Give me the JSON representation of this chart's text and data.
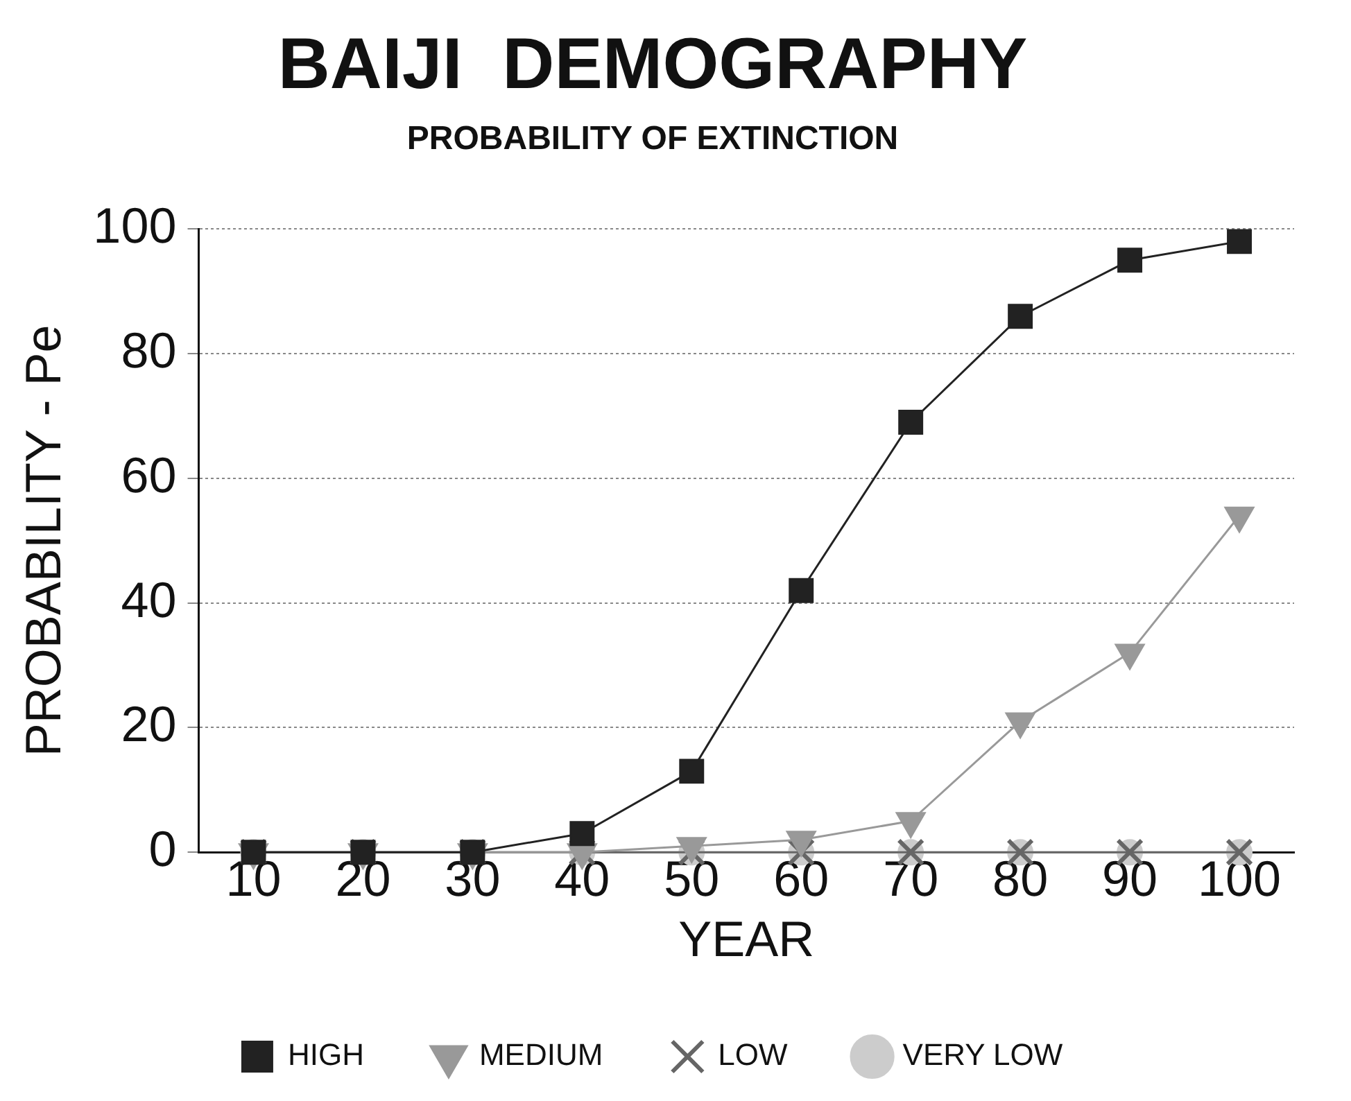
{
  "chart_data": {
    "type": "line",
    "title": "BAIJI  DEMOGRAPHY",
    "subtitle": "PROBABILITY OF EXTINCTION",
    "xlabel": "YEAR",
    "ylabel": "PROBABILITY - Pe",
    "x": [
      10,
      20,
      30,
      40,
      50,
      60,
      70,
      80,
      90,
      100
    ],
    "series": [
      {
        "name": "HIGH",
        "color": "#222222",
        "marker": "square",
        "values": [
          0,
          0,
          0,
          3,
          13,
          42,
          69,
          86,
          95,
          98
        ]
      },
      {
        "name": "MEDIUM",
        "color": "#999999",
        "marker": "triangle",
        "values": [
          0,
          0,
          0,
          0,
          1,
          2,
          5,
          21,
          32,
          54
        ]
      },
      {
        "name": "LOW",
        "color": "#666666",
        "marker": "cross",
        "values": [
          0,
          0,
          0,
          0,
          0,
          0,
          0,
          0,
          0,
          0
        ]
      },
      {
        "name": "VERY LOW",
        "color": "#cccccc",
        "marker": "circle",
        "values": [
          0,
          0,
          0,
          0,
          0,
          0,
          0,
          0,
          0,
          0
        ]
      }
    ],
    "xlim": [
      5,
      105
    ],
    "xticks": [
      10,
      20,
      30,
      40,
      50,
      60,
      70,
      80,
      90,
      100
    ],
    "ylim": [
      0,
      100
    ],
    "yticks": [
      0,
      20,
      40,
      60,
      80,
      100
    ],
    "grid": "y",
    "legend": "bottom",
    "line_style": "solid"
  }
}
